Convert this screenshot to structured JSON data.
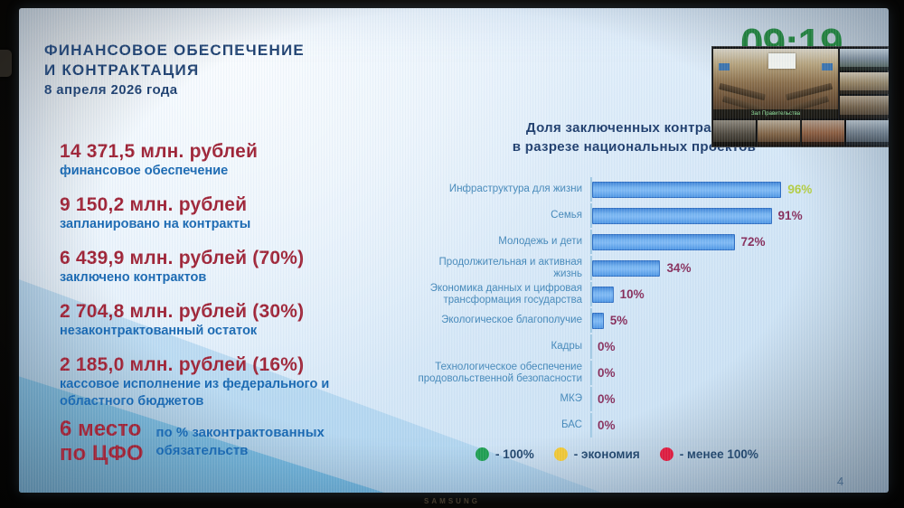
{
  "screen": {
    "brand": "SAMSUNG",
    "clock": "09:19",
    "page_number": "4"
  },
  "header": {
    "title_line1": "ФИНАНСОВОЕ ОБЕСПЕЧЕНИЕ",
    "title_line2": "И КОНТРАКТАЦИЯ",
    "date": "8 апреля 2026 года"
  },
  "stats": [
    {
      "value": "14 371,5 млн. рублей",
      "label": "финансовое обеспечение"
    },
    {
      "value": "9 150,2 млн. рублей",
      "label": "запланировано на контракты"
    },
    {
      "value": "6 439,9 млн. рублей (70%)",
      "label": "заключено контрактов"
    },
    {
      "value": "2 704,8 млн. рублей (30%)",
      "label": "незаконтрактованный остаток"
    },
    {
      "value": "2 185,0 млн. рублей (16%)",
      "label": "кассовое исполнение из федерального и областного бюджетов"
    }
  ],
  "rank": {
    "value_line1": "6 место",
    "value_line2": "по ЦФО",
    "label_line1": "по % законтрактованных",
    "label_line2": "обязательств"
  },
  "chart_data": {
    "type": "bar",
    "orientation": "horizontal",
    "title_line1": "Доля заключенных контрактов",
    "title_line2": "в разрезе национальных проектов",
    "categories": [
      "Инфраструктура для жизни",
      "Семья",
      "Молодежь и дети",
      "Продолжительная и активная жизнь",
      "Экономика данных и цифровая трансформация государства",
      "Экологическое благополучие",
      "Кадры",
      "Технологическое обеспечение продовольственной безопасности",
      "МКЭ",
      "БАС"
    ],
    "values": [
      96,
      91,
      72,
      34,
      10,
      5,
      0,
      0,
      0,
      0
    ],
    "value_labels": [
      "96%",
      "91%",
      "72%",
      "34%",
      "10%",
      "5%",
      "0%",
      "0%",
      "0%",
      "0%"
    ],
    "value_label_colors": [
      "#b2cc3e",
      "#862a58",
      "#862a58",
      "#862a58",
      "#862a58",
      "#862a58",
      "#862a58",
      "#862a58",
      "#862a58",
      "#862a58"
    ],
    "xlim": [
      0,
      100
    ],
    "bar_fill": "#5fa3ea",
    "bar_border": "#2f6ec2",
    "grid": false,
    "legend_position": "bottom"
  },
  "legend": [
    {
      "color": "#1d9e4f",
      "label": "- 100%"
    },
    {
      "color": "#f2c832",
      "label": "- экономия"
    },
    {
      "color": "#e0193c",
      "label": "- менее 100%"
    }
  ],
  "video_panel": {
    "main_label": "Зал Правительства"
  }
}
